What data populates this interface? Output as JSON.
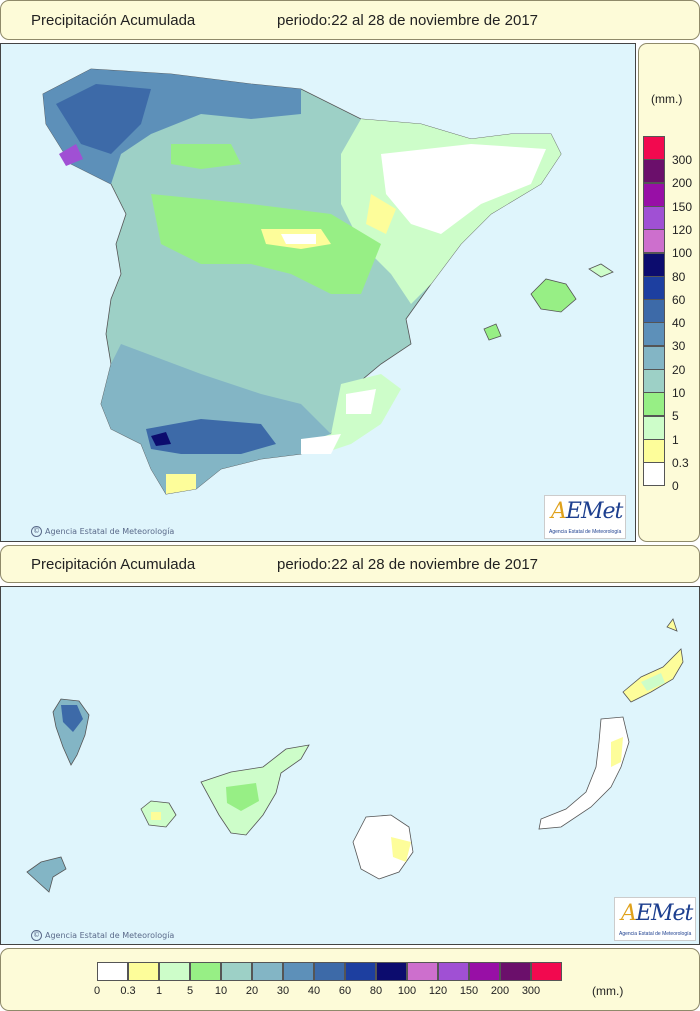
{
  "top_title": {
    "label": "Precipitación Acumulada",
    "period": "periodo:22 al 28 de noviembre de 2017"
  },
  "bottom_title": {
    "label": "Precipitación Acumulada",
    "period": "periodo:22 al 28 de noviembre de 2017"
  },
  "credit": "Agencia Estatal de Meteorología",
  "credit_symbol": "©",
  "logo": {
    "word_a": "A",
    "word_rest": "EMet",
    "subtitle": "Agencia Estatal de Meteorología"
  },
  "unit": "(mm.)",
  "legend": [
    {
      "label": "0",
      "color": "#ffffff"
    },
    {
      "label": "0.3",
      "color": "#fdfd9a"
    },
    {
      "label": "1",
      "color": "#cdfdc9"
    },
    {
      "label": "5",
      "color": "#97ef85"
    },
    {
      "label": "10",
      "color": "#9dd0c6"
    },
    {
      "label": "20",
      "color": "#83b5c5"
    },
    {
      "label": "30",
      "color": "#5d90b9"
    },
    {
      "label": "40",
      "color": "#3d6aa8"
    },
    {
      "label": "60",
      "color": "#1d3fa0"
    },
    {
      "label": "80",
      "color": "#0c0c6e"
    },
    {
      "label": "100",
      "color": "#cd6fcd"
    },
    {
      "label": "120",
      "color": "#a050d4"
    },
    {
      "label": "150",
      "color": "#980fa6"
    },
    {
      "label": "200",
      "color": "#6b0f6b"
    },
    {
      "label": "300",
      "color": "#f2094f"
    }
  ],
  "colors": {
    "sea": "#dff5fc",
    "panel": "#fdfbd8",
    "border": "#8f8a6a"
  }
}
